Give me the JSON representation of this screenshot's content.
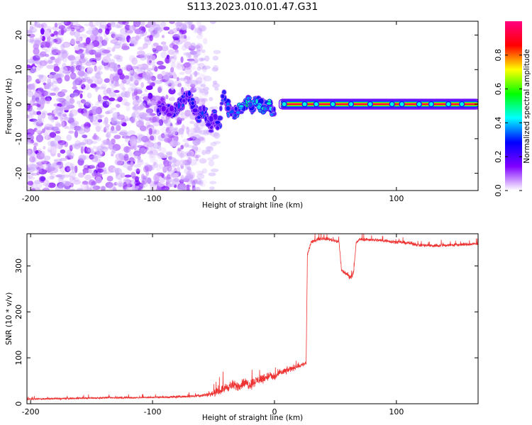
{
  "figure": {
    "title": "S113.2023.010.01.47.G31"
  },
  "chart_data": [
    {
      "type": "heatmap",
      "title": "S113.2023.010.01.47.G31",
      "xlabel": "Height of straight line (km)",
      "ylabel": "Frequency (Hz)",
      "xlim": [
        -203,
        167
      ],
      "ylim": [
        -25,
        24
      ],
      "xticks": [
        -200,
        -100,
        0,
        100
      ],
      "yticks": [
        -20,
        -10,
        0,
        10,
        20
      ],
      "colorbar": {
        "label": "Normalized spectral amplitude",
        "range": [
          0,
          1
        ],
        "ticks": [
          0.0,
          0.2,
          0.4,
          0.6,
          0.8
        ],
        "colormap": [
          "#ffffff",
          "#8000ff",
          "#0000ff",
          "#00ffff",
          "#00ff00",
          "#ffff00",
          "#ff0000",
          "#ff0080"
        ]
      },
      "regions": [
        {
          "description": "scattered noise",
          "x_range": [
            -203,
            -55
          ],
          "amplitude_range": [
            0.0,
            0.15
          ]
        },
        {
          "description": "transition",
          "x_range": [
            -95,
            0
          ],
          "amplitude_range": [
            0.1,
            0.5
          ]
        },
        {
          "description": "steady signal line at 0 Hz",
          "x_range": [
            0,
            167
          ],
          "frequency": 0,
          "amplitude": 0.95
        }
      ],
      "signal_track": {
        "x": [
          -95,
          -88,
          -82,
          -75,
          -70,
          -66,
          -62,
          -58,
          -55,
          -52,
          -49,
          -46,
          -43,
          -40,
          -37,
          -33,
          -30,
          -27,
          -24,
          -21,
          -18,
          -15,
          -12,
          -9,
          -5,
          -1,
          5,
          20,
          40,
          60,
          80,
          100,
          120,
          140,
          160,
          167
        ],
        "y": [
          -1,
          -1.5,
          -2,
          1,
          2.5,
          -1,
          -4,
          -2,
          -5,
          -6,
          -3,
          -7,
          2,
          1,
          -2,
          -2.5,
          -2,
          -1,
          0,
          1,
          -1,
          1,
          0,
          -1,
          0,
          -2,
          0,
          0,
          0,
          0,
          0,
          0,
          0,
          0,
          0,
          0
        ],
        "amplitude": [
          0.25,
          0.3,
          0.3,
          0.35,
          0.35,
          0.3,
          0.35,
          0.35,
          0.3,
          0.3,
          0.35,
          0.35,
          0.4,
          0.35,
          0.4,
          0.45,
          0.5,
          0.5,
          0.55,
          0.55,
          0.5,
          0.55,
          0.55,
          0.5,
          0.55,
          0.4,
          0.9,
          0.95,
          0.95,
          0.95,
          0.95,
          0.95,
          0.95,
          0.95,
          0.95,
          0.95
        ]
      }
    },
    {
      "type": "line",
      "xlabel": "Height of straight line (km)",
      "ylabel": "SNR (10 * v/v)",
      "xlim": [
        -203,
        167
      ],
      "ylim": [
        0,
        370
      ],
      "xticks": [
        -200,
        -100,
        0,
        100
      ],
      "yticks": [
        0,
        100,
        200,
        300
      ],
      "color": "#ee3333",
      "series": [
        {
          "x": [
            -203,
            -180,
            -160,
            -140,
            -120,
            -100,
            -80,
            -70,
            -60,
            -50,
            -45,
            -40,
            -35,
            -30,
            -25,
            -20,
            -15,
            -10,
            -5,
            0,
            5,
            10,
            15,
            20,
            24,
            26,
            27,
            30,
            35,
            40,
            45,
            50,
            53,
            55,
            58,
            60,
            63,
            65,
            67,
            70,
            80,
            90,
            100,
            110,
            120,
            130,
            140,
            150,
            160,
            167
          ],
          "y": [
            10,
            11,
            12,
            13,
            13,
            14,
            15,
            16,
            18,
            22,
            28,
            35,
            40,
            38,
            45,
            42,
            50,
            55,
            60,
            58,
            68,
            72,
            78,
            82,
            86,
            88,
            325,
            350,
            358,
            360,
            358,
            355,
            352,
            290,
            285,
            280,
            275,
            290,
            350,
            358,
            357,
            355,
            352,
            350,
            345,
            344,
            345,
            346,
            347,
            348
          ],
          "spread": [
            4,
            5,
            5,
            5,
            5,
            5,
            6,
            6,
            8,
            14,
            20,
            24,
            26,
            26,
            28,
            28,
            26,
            26,
            24,
            22,
            20,
            18,
            16,
            14,
            12,
            12,
            16,
            10,
            9,
            9,
            9,
            9,
            9,
            12,
            12,
            12,
            12,
            12,
            9,
            9,
            9,
            9,
            9,
            9,
            9,
            9,
            9,
            9,
            9,
            9
          ]
        }
      ]
    }
  ]
}
